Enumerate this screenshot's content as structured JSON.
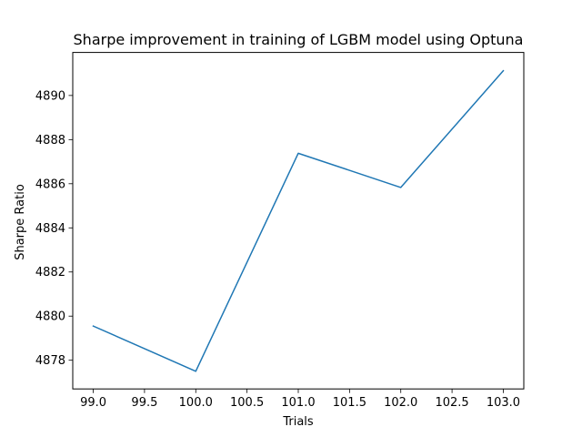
{
  "chart_data": {
    "type": "line",
    "title": "Sharpe improvement in training of LGBM model using Optuna",
    "xlabel": "Trials",
    "ylabel": "Sharpe Ratio",
    "xlim": [
      98.8,
      103.2
    ],
    "ylim": [
      4876.7,
      4891.95
    ],
    "xticks": [
      99.0,
      99.5,
      100.0,
      100.5,
      101.0,
      101.5,
      102.0,
      102.5,
      103.0
    ],
    "xtick_labels": [
      "99.0",
      "99.5",
      "100.0",
      "100.5",
      "101.0",
      "101.5",
      "102.0",
      "102.5",
      "103.0"
    ],
    "yticks": [
      4878,
      4880,
      4882,
      4884,
      4886,
      4888,
      4890
    ],
    "ytick_labels": [
      "4878",
      "4880",
      "4882",
      "4884",
      "4886",
      "4888",
      "4890"
    ],
    "grid": false,
    "series": [
      {
        "color": "#1f77b4",
        "x": [
          99,
          100,
          101,
          102,
          103
        ],
        "y": [
          4879.55,
          4877.5,
          4887.38,
          4885.83,
          4891.12
        ]
      }
    ]
  }
}
